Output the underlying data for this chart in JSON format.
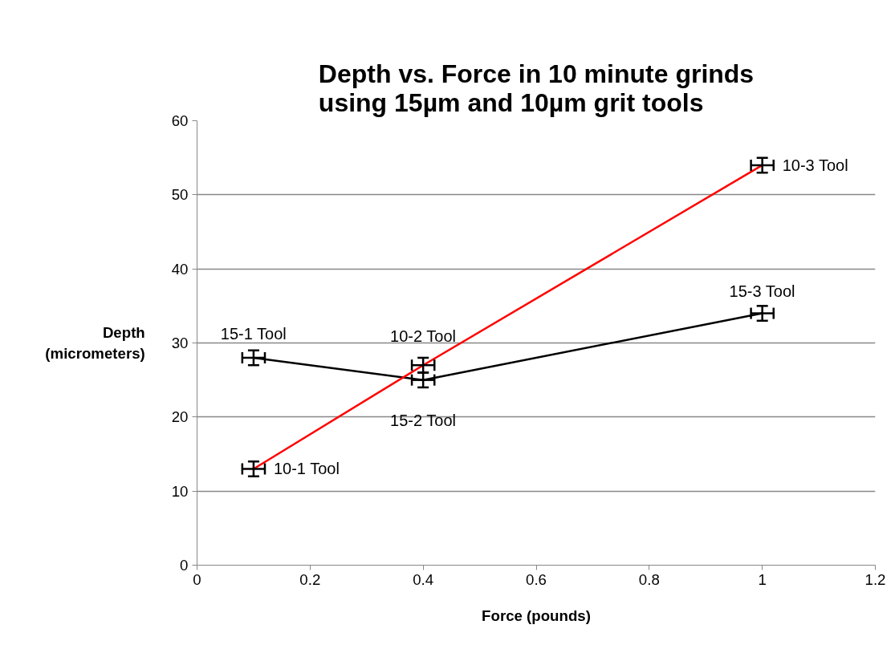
{
  "chart_data": {
    "type": "line",
    "title": "Depth vs. Force in 10 minute grinds using 15µm and 10µm grit tools",
    "xlabel": "Force (pounds)",
    "ylabel": "Depth (micrometers)",
    "xlim": [
      0,
      1.2
    ],
    "xticks": [
      0,
      0.2,
      0.4,
      0.6,
      0.8,
      1,
      1.2
    ],
    "ylim": [
      0,
      60
    ],
    "yticks": [
      0,
      10,
      20,
      30,
      40,
      50,
      60
    ],
    "grid": "y",
    "marker": "none",
    "line_style": "solid",
    "series": [
      {
        "color": "#000000",
        "x": [
          0.1,
          0.4,
          1
        ],
        "values": [
          28,
          25,
          34
        ],
        "errors": [
          1,
          1,
          1
        ],
        "xerrors": [
          0.02,
          0.02,
          0.02
        ]
      },
      {
        "color": "#ff0000",
        "x": [
          0.1,
          0.4,
          1
        ],
        "values": [
          13,
          27,
          54
        ],
        "errors": [
          1,
          1,
          1
        ],
        "xerrors": [
          0.02,
          0.02,
          0.02
        ]
      }
    ],
    "annotations": [
      {
        "text": "15-1 Tool",
        "x": 0.1,
        "y": 28
      },
      {
        "text": "15-2 Tool",
        "x": 0.4,
        "y": 25
      },
      {
        "text": "15-3 Tool",
        "x": 1,
        "y": 34
      },
      {
        "text": "10-1 Tool",
        "x": 0.1,
        "y": 13
      },
      {
        "text": "10-2 Tool",
        "x": 0.4,
        "y": 27
      },
      {
        "text": "10-3 Tool",
        "x": 1,
        "y": 54
      }
    ]
  }
}
